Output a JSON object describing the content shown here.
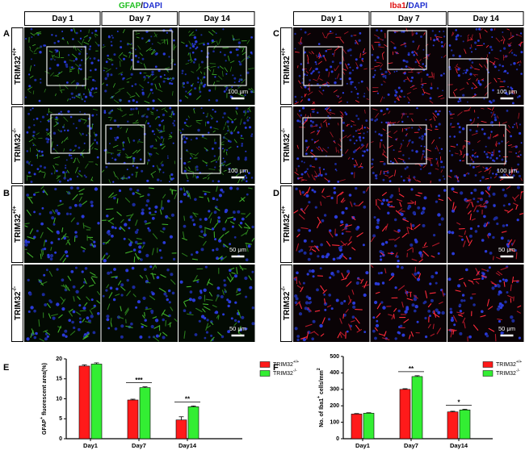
{
  "figure": {
    "left_stain": {
      "marker": "GFAP",
      "sep": "/",
      "dapi": "DAPI"
    },
    "right_stain": {
      "marker": "Iba1",
      "sep": "/",
      "dapi": "DAPI"
    },
    "days": [
      "Day 1",
      "Day 7",
      "Day 14"
    ],
    "panel_letters": [
      "A",
      "B",
      "C",
      "D",
      "E",
      "F"
    ],
    "row_labels": [
      {
        "text": "TRIM32",
        "sup": "+/+"
      },
      {
        "text": "TRIM32",
        "sup": "-/-"
      }
    ],
    "scale_bars": [
      "100 μm",
      "50 μm"
    ]
  },
  "chart_data": [
    {
      "type": "bar",
      "ylabel": [
        "GFAP",
        "+",
        " fluorescent area(%)"
      ],
      "categories": [
        "Day1",
        "Day7",
        "Day14"
      ],
      "series": [
        {
          "name": "TRIM32",
          "name_sup": "+/+",
          "color": "#ff1a1a",
          "values": [
            18.2,
            9.7,
            4.7
          ],
          "errors": [
            0.3,
            0.2,
            0.8
          ]
        },
        {
          "name": "TRIM32",
          "name_sup": "-/-",
          "color": "#33ee33",
          "values": [
            18.7,
            12.8,
            8.0
          ],
          "errors": [
            0.3,
            0.2,
            0.2
          ]
        }
      ],
      "significance": [
        null,
        "***",
        "**"
      ],
      "ylim": [
        0,
        20
      ],
      "yticks": [
        0,
        5,
        10,
        15,
        20
      ]
    },
    {
      "type": "bar",
      "ylabel": [
        "No. of Iba1",
        "+",
        " cells/mm",
        "2"
      ],
      "categories": [
        "Day1",
        "Day7",
        "Day14"
      ],
      "series": [
        {
          "name": "TRIM32",
          "name_sup": "+/+",
          "color": "#ff1a1a",
          "values": [
            150,
            300,
            163
          ],
          "errors": [
            3,
            4,
            4
          ]
        },
        {
          "name": "TRIM32",
          "name_sup": "-/-",
          "color": "#33ee33",
          "values": [
            155,
            378,
            175
          ],
          "errors": [
            3,
            5,
            4
          ]
        }
      ],
      "significance": [
        null,
        "**",
        "*"
      ],
      "ylim": [
        0,
        500
      ],
      "yticks": [
        0,
        100,
        200,
        300,
        400,
        500
      ]
    }
  ]
}
